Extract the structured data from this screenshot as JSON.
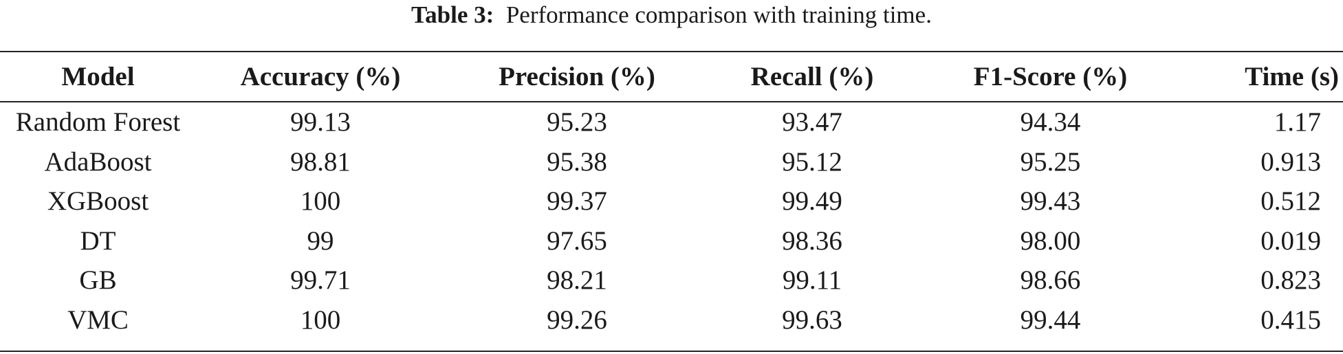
{
  "caption": {
    "label": "Table 3:",
    "text": "Performance comparison with training time."
  },
  "table": {
    "headers": [
      "Model",
      "Accuracy (%)",
      "Precision (%)",
      "Recall (%)",
      "F1-Score (%)",
      "Time (s)"
    ],
    "rows": [
      [
        "Random Forest",
        "99.13",
        "95.23",
        "93.47",
        "94.34",
        "1.17"
      ],
      [
        "AdaBoost",
        "98.81",
        "95.38",
        "95.12",
        "95.25",
        "0.913"
      ],
      [
        "XGBoost",
        "100",
        "99.37",
        "99.49",
        "99.43",
        "0.512"
      ],
      [
        "DT",
        "99",
        "97.65",
        "98.36",
        "98.00",
        "0.019"
      ],
      [
        "GB",
        "99.71",
        "98.21",
        "99.11",
        "98.66",
        "0.823"
      ],
      [
        "VMC",
        "100",
        "99.26",
        "99.63",
        "99.44",
        "0.415"
      ]
    ]
  }
}
